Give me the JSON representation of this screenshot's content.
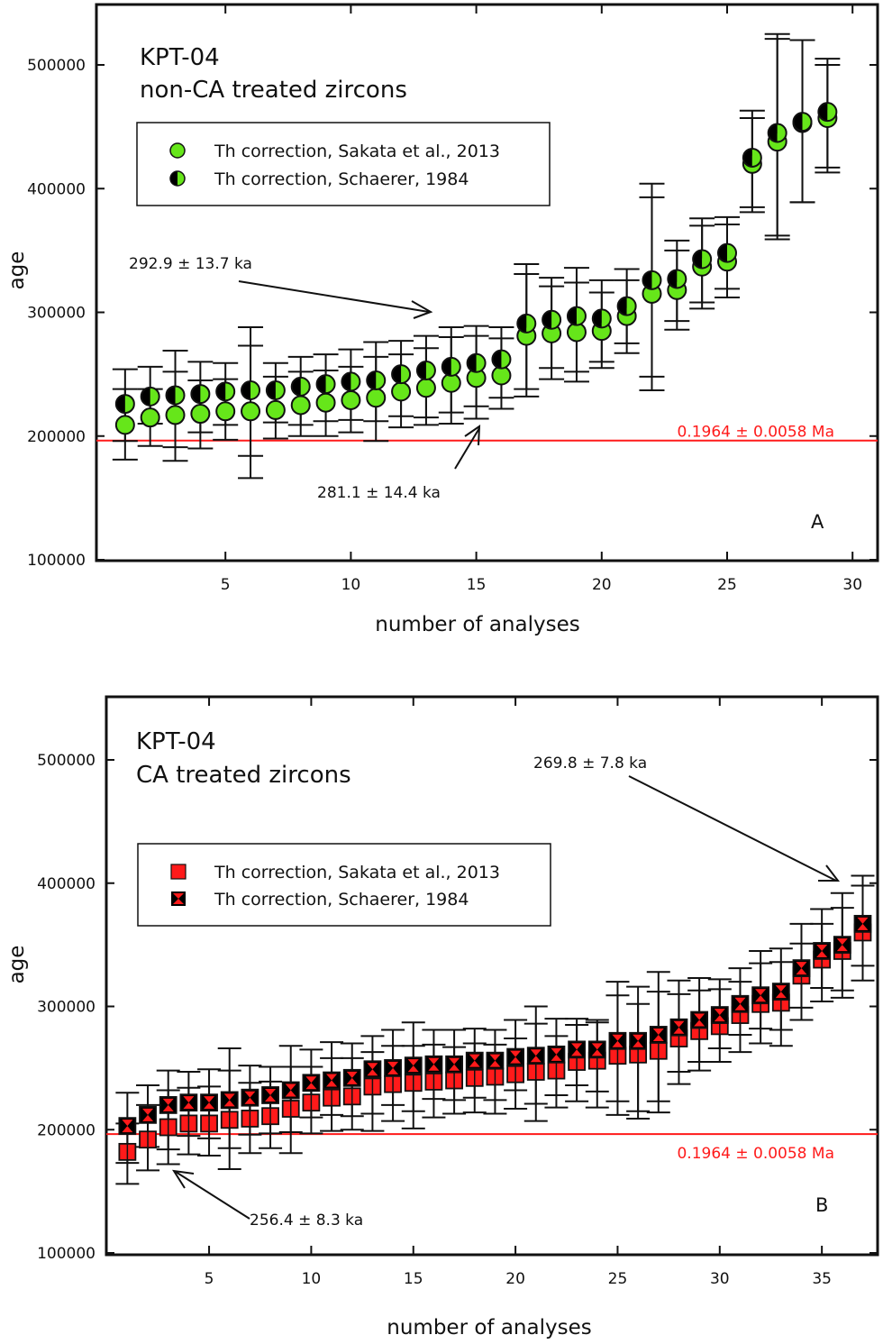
{
  "chart_data": [
    {
      "type": "scatter",
      "panel": "A",
      "title": "KPT-04",
      "subtitle": "non-CA treated zircons",
      "xlabel": "number of analyses",
      "ylabel": "age",
      "xlim": [
        0,
        30.5
      ],
      "ylim": [
        100000,
        550000
      ],
      "xticks": [
        5,
        10,
        15,
        20,
        25,
        30
      ],
      "yticks": [
        100000,
        200000,
        300000,
        400000,
        500000
      ],
      "ytick_labels": [
        "100000",
        "200000",
        "300000",
        "400000",
        "500000"
      ],
      "grid": false,
      "legend_position": "top-left",
      "colors": {
        "sakata": "#66e61a",
        "schaerer_dark": "#000000",
        "reference": "#ff1a1a"
      },
      "series": [
        {
          "name": "Th correction, Sakata et al., 2013",
          "marker": "circle-green",
          "x": [
            1,
            2,
            3,
            4,
            5,
            6,
            7,
            8,
            9,
            10,
            11,
            12,
            13,
            14,
            15,
            16,
            17,
            18,
            19,
            20,
            21,
            22,
            23,
            24,
            25,
            26,
            27,
            28,
            29
          ],
          "y": [
            209000,
            215000,
            217000,
            218000,
            220000,
            220000,
            221000,
            225000,
            227000,
            229000,
            231000,
            236000,
            239000,
            243000,
            247000,
            249000,
            281000,
            283000,
            284000,
            285000,
            297000,
            315000,
            318000,
            337000,
            341000,
            420000,
            438000,
            453000,
            457000
          ],
          "err_low": [
            181000,
            192000,
            180000,
            190000,
            197000,
            166000,
            198000,
            200000,
            200000,
            203000,
            196000,
            207000,
            209000,
            210000,
            214000,
            222000,
            232000,
            246000,
            244000,
            255000,
            267000,
            237000,
            286000,
            303000,
            312000,
            381000,
            359000,
            389000,
            413000
          ],
          "err_high": [
            238000,
            238000,
            252000,
            245000,
            246000,
            273000,
            248000,
            252000,
            253000,
            256000,
            264000,
            266000,
            271000,
            280000,
            281000,
            279000,
            331000,
            321000,
            324000,
            316000,
            326000,
            393000,
            350000,
            370000,
            371000,
            457000,
            521000,
            520000,
            500000
          ]
        },
        {
          "name": "Th correction, Schaerer, 1984",
          "marker": "circle-half-black-green",
          "x": [
            1,
            2,
            3,
            4,
            5,
            6,
            7,
            8,
            9,
            10,
            11,
            12,
            13,
            14,
            15,
            16,
            17,
            18,
            19,
            20,
            21,
            22,
            23,
            24,
            25,
            26,
            27,
            28,
            29
          ],
          "y": [
            226000,
            232000,
            233000,
            234000,
            236000,
            237000,
            237000,
            240000,
            242000,
            244000,
            245000,
            250000,
            253000,
            256000,
            259000,
            262000,
            291000,
            294000,
            297000,
            295000,
            305000,
            326000,
            327000,
            343000,
            348000,
            425000,
            445000,
            454000,
            462000
          ],
          "err_low": [
            196000,
            210000,
            191000,
            203000,
            209000,
            184000,
            211000,
            209000,
            212000,
            213000,
            212000,
            216000,
            215000,
            219000,
            224000,
            231000,
            238000,
            255000,
            252000,
            260000,
            275000,
            248000,
            293000,
            308000,
            319000,
            385000,
            362000,
            389000,
            417000
          ],
          "err_high": [
            254000,
            256000,
            269000,
            260000,
            259000,
            288000,
            259000,
            264000,
            266000,
            270000,
            276000,
            277000,
            281000,
            288000,
            289000,
            288000,
            339000,
            328000,
            336000,
            326000,
            335000,
            404000,
            358000,
            376000,
            377000,
            463000,
            525000,
            520000,
            505000
          ]
        }
      ],
      "reference_line": {
        "value": 196400,
        "label": "0.1964 ± 0.0058 Ma",
        "color": "#ff1a1a"
      },
      "annotations": [
        {
          "text": "292.9 ± 13.7 ka",
          "points_to_x": 13.2,
          "points_to_y": 296000
        },
        {
          "text": "281.1 ± 14.4 ka",
          "points_to_x": 15,
          "points_to_y": 212000
        }
      ],
      "panel_letter": "A"
    },
    {
      "type": "scatter",
      "panel": "B",
      "title": "KPT-04",
      "subtitle": "CA treated zircons",
      "xlabel": "number of analyses",
      "ylabel": "age",
      "xlim": [
        0,
        38
      ],
      "ylim": [
        100000,
        550000
      ],
      "xticks": [
        5,
        10,
        15,
        20,
        25,
        30,
        35
      ],
      "yticks": [
        100000,
        200000,
        300000,
        400000,
        500000
      ],
      "ytick_labels": [
        "100000",
        "200000",
        "300000",
        "400000",
        "500000"
      ],
      "grid": false,
      "legend_position": "top-left",
      "colors": {
        "sakata": "#ff1a1a",
        "schaerer_dark": "#000000",
        "reference": "#ff1a1a"
      },
      "series": [
        {
          "name": "Th correction, Sakata et al., 2013",
          "marker": "square-red",
          "x": [
            1,
            2,
            3,
            4,
            5,
            6,
            7,
            8,
            9,
            10,
            11,
            12,
            13,
            14,
            15,
            16,
            17,
            18,
            19,
            20,
            21,
            22,
            23,
            24,
            25,
            26,
            27,
            28,
            29,
            30,
            31,
            32,
            33,
            34,
            35,
            36,
            37
          ],
          "y": [
            182000,
            192000,
            202000,
            205000,
            205000,
            208000,
            209000,
            211000,
            217000,
            222000,
            226000,
            227000,
            235000,
            237000,
            238000,
            239000,
            240000,
            242000,
            243000,
            245000,
            247000,
            248000,
            255000,
            256000,
            260000,
            261000,
            264000,
            274000,
            280000,
            284000,
            293000,
            302000,
            303000,
            325000,
            338000,
            345000,
            360000
          ],
          "err_low": [
            156000,
            167000,
            172000,
            180000,
            179000,
            168000,
            181000,
            185000,
            181000,
            197000,
            199000,
            200000,
            199000,
            207000,
            201000,
            210000,
            213000,
            214000,
            213000,
            217000,
            207000,
            218000,
            223000,
            218000,
            212000,
            209000,
            214000,
            237000,
            248000,
            255000,
            263000,
            270000,
            268000,
            289000,
            304000,
            307000,
            321000
          ],
          "err_high": [
            205000,
            220000,
            232000,
            234000,
            235000,
            248000,
            238000,
            239000,
            251000,
            251000,
            258000,
            258000,
            263000,
            268000,
            268000,
            269000,
            267000,
            270000,
            269000,
            274000,
            286000,
            276000,
            285000,
            287000,
            309000,
            302000,
            312000,
            310000,
            313000,
            314000,
            320000,
            335000,
            336000,
            351000,
            367000,
            380000,
            398000
          ]
        },
        {
          "name": "Th correction, Schaerer, 1984",
          "marker": "square-black-red-hourglass",
          "x": [
            1,
            2,
            3,
            4,
            5,
            6,
            7,
            8,
            9,
            10,
            11,
            12,
            13,
            14,
            15,
            16,
            17,
            18,
            19,
            20,
            21,
            22,
            23,
            24,
            25,
            26,
            27,
            28,
            29,
            30,
            31,
            32,
            33,
            34,
            35,
            36,
            37
          ],
          "y": [
            203000,
            212000,
            220000,
            222000,
            222000,
            224000,
            226000,
            228000,
            232000,
            238000,
            240000,
            242000,
            249000,
            250000,
            252000,
            253000,
            253000,
            256000,
            256000,
            259000,
            260000,
            261000,
            265000,
            265000,
            272000,
            272000,
            277000,
            283000,
            289000,
            293000,
            302000,
            309000,
            312000,
            331000,
            345000,
            350000,
            367000
          ],
          "err_low": [
            173000,
            186000,
            184000,
            195000,
            193000,
            185000,
            196000,
            197000,
            198000,
            210000,
            212000,
            211000,
            213000,
            220000,
            215000,
            225000,
            224000,
            226000,
            224000,
            232000,
            221000,
            228000,
            236000,
            231000,
            223000,
            215000,
            223000,
            247000,
            255000,
            266000,
            277000,
            282000,
            281000,
            299000,
            315000,
            313000,
            333000
          ],
          "err_high": [
            230000,
            236000,
            248000,
            247000,
            249000,
            266000,
            252000,
            251000,
            268000,
            265000,
            271000,
            270000,
            276000,
            281000,
            287000,
            281000,
            281000,
            282000,
            281000,
            289000,
            300000,
            290000,
            290000,
            289000,
            320000,
            316000,
            328000,
            321000,
            323000,
            322000,
            331000,
            345000,
            347000,
            367000,
            379000,
            392000,
            406000
          ]
        }
      ],
      "reference_line": {
        "value": 196400,
        "label": "0.1964 ± 0.0058 Ma",
        "color": "#ff1a1a"
      },
      "annotations": [
        {
          "text": "269.8 ± 7.8 ka",
          "points_to_x": 36.5,
          "points_to_y": 400000
        },
        {
          "text": "256.4 ± 8.3 ka",
          "points_to_x": 3.2,
          "points_to_y": 168000
        }
      ],
      "panel_letter": "B"
    }
  ]
}
